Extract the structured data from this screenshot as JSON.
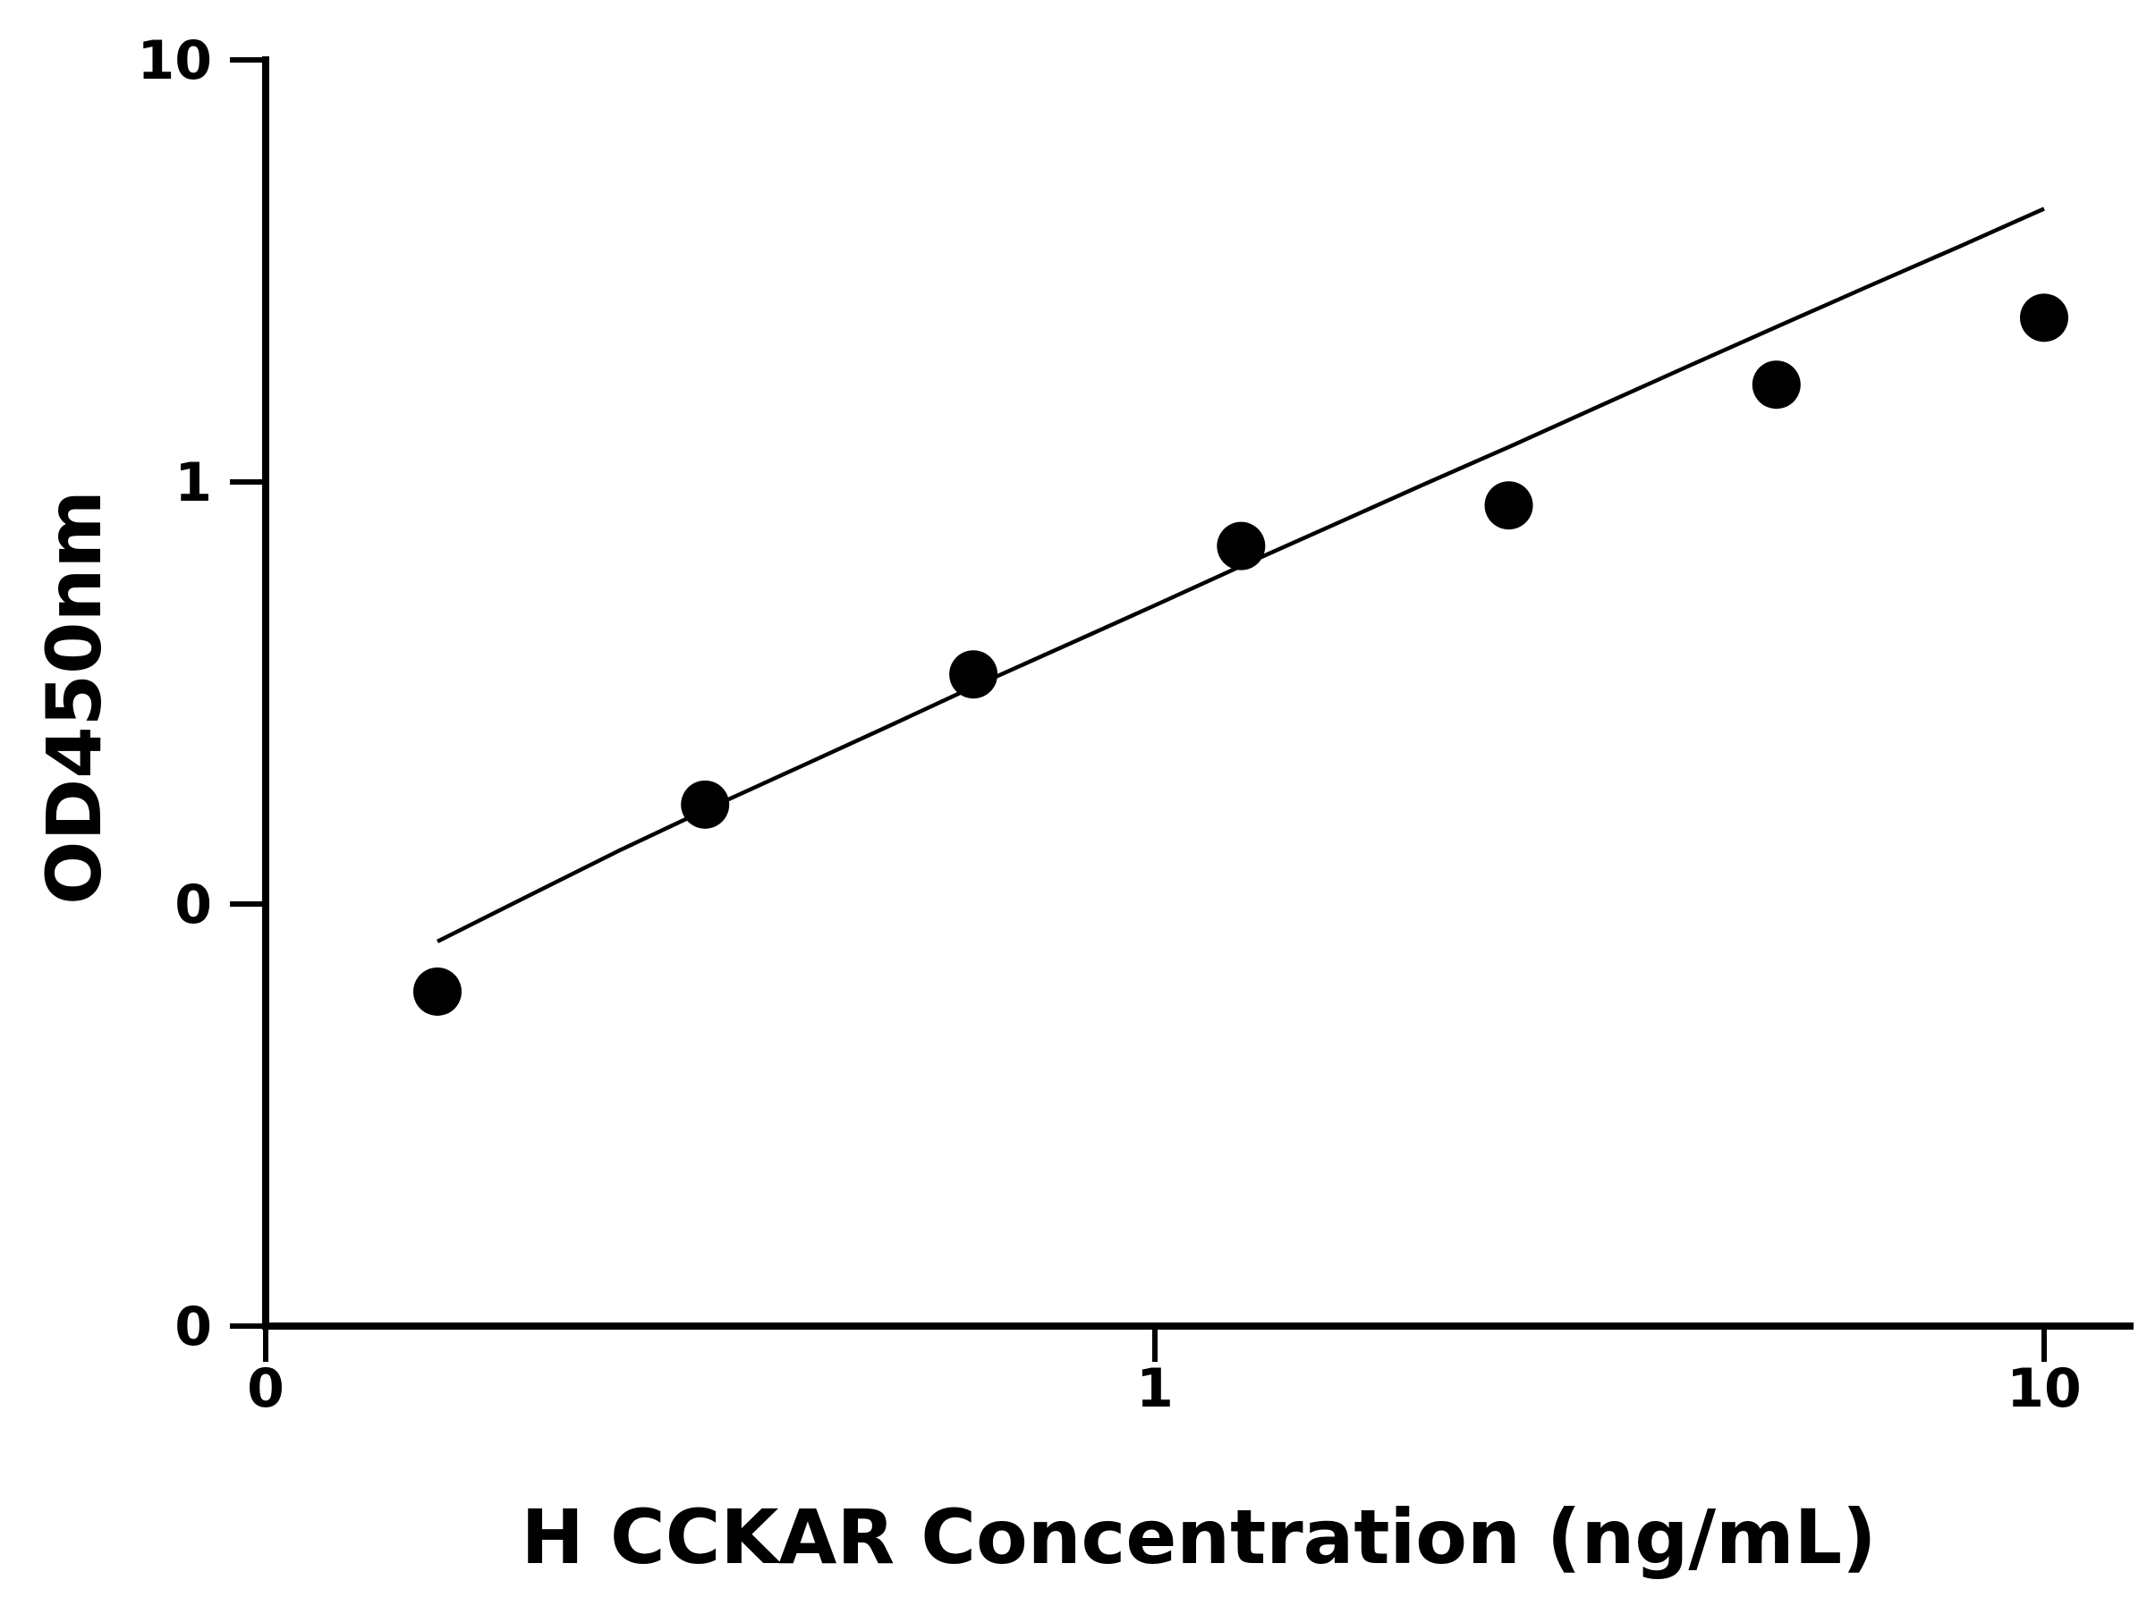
{
  "chart_data": {
    "type": "scatter",
    "title": "",
    "xlabel": "H CCKAR Concentration (ng/mL)",
    "ylabel": "OD450nm",
    "x_scale": "log",
    "y_scale": "log",
    "xlim": [
      0.1,
      10
    ],
    "ylim": [
      0.01,
      10
    ],
    "x_ticks": [
      {
        "value": 0.1,
        "label": "0"
      },
      {
        "value": 1,
        "label": "1"
      },
      {
        "value": 10,
        "label": "10"
      }
    ],
    "y_ticks": [
      {
        "value": 0.01,
        "label": "0"
      },
      {
        "value": 0.1,
        "label": "0"
      },
      {
        "value": 1,
        "label": "1"
      },
      {
        "value": 10,
        "label": "10"
      }
    ],
    "points": [
      {
        "x": 0.156,
        "y": 0.062
      },
      {
        "x": 0.312,
        "y": 0.172
      },
      {
        "x": 0.625,
        "y": 0.35
      },
      {
        "x": 1.25,
        "y": 0.705
      },
      {
        "x": 2.5,
        "y": 0.88
      },
      {
        "x": 5,
        "y": 1.7
      },
      {
        "x": 10,
        "y": 2.45
      }
    ],
    "fit_curve": {
      "type": "line",
      "x": [
        0.156,
        0.2,
        0.25,
        0.312,
        0.4,
        0.5,
        0.625,
        0.8,
        1.0,
        1.25,
        1.6,
        2.0,
        2.5,
        3.2,
        4.0,
        5.0,
        6.3,
        8.0,
        10.0
      ],
      "y": [
        0.0815,
        0.106,
        0.134,
        0.167,
        0.212,
        0.263,
        0.327,
        0.413,
        0.51,
        0.632,
        0.797,
        0.984,
        1.21,
        1.53,
        1.89,
        2.33,
        2.89,
        3.6,
        4.44
      ]
    },
    "grid": false,
    "legend": "none",
    "colors": {
      "axis": "#000000",
      "marker": "#000000",
      "curve": "#000000"
    }
  }
}
